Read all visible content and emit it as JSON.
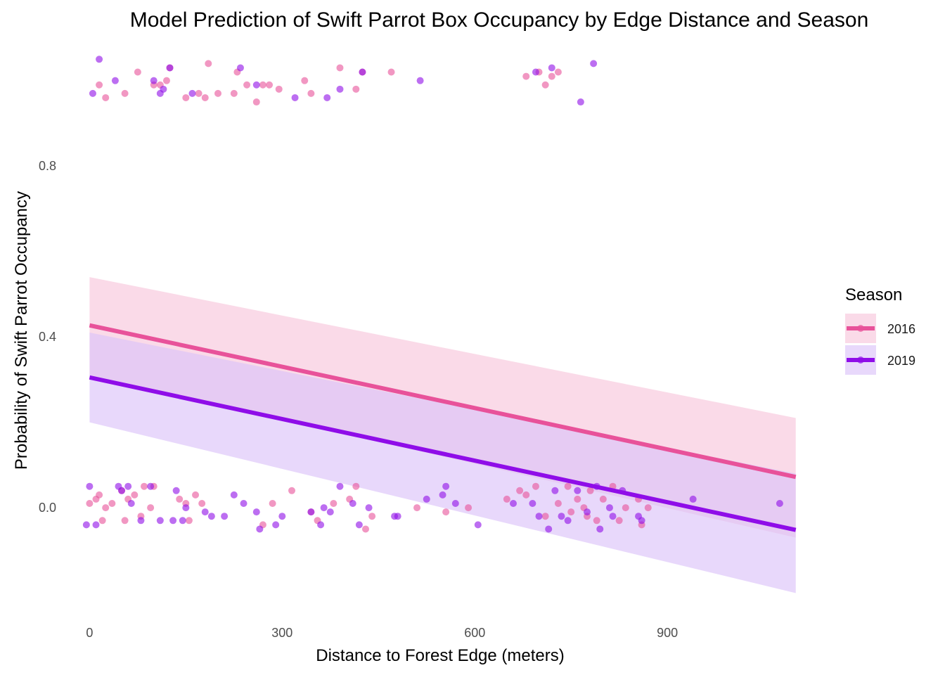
{
  "chart_data": {
    "type": "scatter",
    "title": "Model Prediction of Swift Parrot Box Occupancy by Edge Distance and Season",
    "xlabel": "Distance to Forest Edge (meters)",
    "ylabel": "Probability of Swift Parrot Occupancy",
    "xlim": [
      -30,
      1120
    ],
    "ylim": [
      -0.26,
      1.09
    ],
    "xticks": [
      0,
      300,
      600,
      900
    ],
    "yticks": [
      0.0,
      0.4,
      0.8
    ],
    "xtick_labels": [
      "0",
      "300",
      "600",
      "900"
    ],
    "ytick_labels": [
      "0.0",
      "0.4",
      "0.8"
    ],
    "grid": false,
    "legend": {
      "title": "Season",
      "position": "right"
    },
    "series": [
      {
        "name": "2016",
        "color": "#e8529a",
        "band_color": "#f7c6dc",
        "fit_line": {
          "x": [
            0,
            1100
          ],
          "y": [
            0.427,
            0.072
          ]
        },
        "ci_band": {
          "x": [
            0,
            1100
          ],
          "lower": [
            0.31,
            -0.07
          ],
          "upper": [
            0.54,
            0.21
          ]
        },
        "points_occupied": [
          [
            15,
            0.99
          ],
          [
            25,
            0.96
          ],
          [
            55,
            0.97
          ],
          [
            75,
            1.02
          ],
          [
            100,
            0.99
          ],
          [
            110,
            0.99
          ],
          [
            120,
            1.0
          ],
          [
            125,
            1.03
          ],
          [
            150,
            0.96
          ],
          [
            170,
            0.97
          ],
          [
            180,
            0.96
          ],
          [
            185,
            1.04
          ],
          [
            200,
            0.97
          ],
          [
            225,
            0.97
          ],
          [
            230,
            1.02
          ],
          [
            245,
            0.99
          ],
          [
            260,
            0.95
          ],
          [
            270,
            0.99
          ],
          [
            280,
            0.99
          ],
          [
            295,
            0.98
          ],
          [
            335,
            1.0
          ],
          [
            345,
            0.97
          ],
          [
            390,
            1.03
          ],
          [
            415,
            0.98
          ],
          [
            425,
            1.02
          ],
          [
            470,
            1.02
          ],
          [
            680,
            1.01
          ],
          [
            700,
            1.02
          ],
          [
            710,
            0.99
          ],
          [
            720,
            1.01
          ],
          [
            730,
            1.02
          ]
        ],
        "points_unoccupied": [
          [
            0,
            0.01
          ],
          [
            10,
            0.02
          ],
          [
            15,
            0.03
          ],
          [
            20,
            -0.03
          ],
          [
            25,
            0.0
          ],
          [
            35,
            0.01
          ],
          [
            50,
            0.04
          ],
          [
            55,
            -0.03
          ],
          [
            60,
            0.02
          ],
          [
            70,
            0.03
          ],
          [
            80,
            -0.02
          ],
          [
            85,
            0.05
          ],
          [
            95,
            0.0
          ],
          [
            100,
            0.05
          ],
          [
            140,
            0.02
          ],
          [
            150,
            0.01
          ],
          [
            155,
            -0.03
          ],
          [
            165,
            0.03
          ],
          [
            175,
            0.01
          ],
          [
            270,
            -0.04
          ],
          [
            285,
            0.01
          ],
          [
            315,
            0.04
          ],
          [
            345,
            -0.01
          ],
          [
            355,
            -0.03
          ],
          [
            380,
            0.01
          ],
          [
            405,
            0.02
          ],
          [
            415,
            0.05
          ],
          [
            430,
            -0.05
          ],
          [
            440,
            -0.02
          ],
          [
            510,
            0.0
          ],
          [
            555,
            -0.01
          ],
          [
            590,
            0.0
          ],
          [
            650,
            0.02
          ],
          [
            670,
            0.04
          ],
          [
            680,
            0.03
          ],
          [
            695,
            0.05
          ],
          [
            710,
            -0.02
          ],
          [
            730,
            0.01
          ],
          [
            745,
            0.05
          ],
          [
            750,
            -0.01
          ],
          [
            760,
            0.02
          ],
          [
            770,
            0.0
          ],
          [
            775,
            -0.02
          ],
          [
            780,
            0.04
          ],
          [
            790,
            -0.03
          ],
          [
            800,
            0.02
          ],
          [
            815,
            0.05
          ],
          [
            825,
            -0.03
          ],
          [
            835,
            0.0
          ],
          [
            855,
            0.02
          ],
          [
            860,
            -0.04
          ],
          [
            870,
            0.0
          ]
        ]
      },
      {
        "name": "2019",
        "color": "#8f0de8",
        "band_color": "#dcc3f9",
        "fit_line": {
          "x": [
            0,
            1100
          ],
          "y": [
            0.305,
            -0.052
          ]
        },
        "ci_band": {
          "x": [
            0,
            1100
          ],
          "lower": [
            0.2,
            -0.2
          ],
          "upper": [
            0.41,
            0.08
          ]
        },
        "points_occupied": [
          [
            5,
            0.97
          ],
          [
            15,
            1.05
          ],
          [
            40,
            1.0
          ],
          [
            100,
            1.0
          ],
          [
            110,
            0.97
          ],
          [
            115,
            0.98
          ],
          [
            125,
            1.03
          ],
          [
            160,
            0.97
          ],
          [
            260,
            0.99
          ],
          [
            235,
            1.03
          ],
          [
            320,
            0.96
          ],
          [
            370,
            0.96
          ],
          [
            390,
            0.98
          ],
          [
            425,
            1.02
          ],
          [
            515,
            1.0
          ],
          [
            695,
            1.02
          ],
          [
            720,
            1.03
          ],
          [
            765,
            0.95
          ],
          [
            785,
            1.04
          ]
        ],
        "points_unoccupied": [
          [
            -5,
            -0.04
          ],
          [
            0,
            0.05
          ],
          [
            10,
            -0.04
          ],
          [
            45,
            0.05
          ],
          [
            50,
            0.04
          ],
          [
            60,
            0.05
          ],
          [
            65,
            0.01
          ],
          [
            80,
            -0.03
          ],
          [
            95,
            0.05
          ],
          [
            110,
            -0.03
          ],
          [
            130,
            -0.03
          ],
          [
            135,
            0.04
          ],
          [
            145,
            -0.03
          ],
          [
            150,
            0.0
          ],
          [
            180,
            -0.01
          ],
          [
            190,
            -0.02
          ],
          [
            210,
            -0.02
          ],
          [
            225,
            0.03
          ],
          [
            240,
            0.01
          ],
          [
            260,
            -0.01
          ],
          [
            265,
            -0.05
          ],
          [
            290,
            -0.04
          ],
          [
            300,
            -0.02
          ],
          [
            345,
            -0.01
          ],
          [
            360,
            -0.04
          ],
          [
            365,
            0.0
          ],
          [
            375,
            -0.01
          ],
          [
            390,
            0.05
          ],
          [
            410,
            0.01
          ],
          [
            420,
            -0.04
          ],
          [
            435,
            0.0
          ],
          [
            475,
            -0.02
          ],
          [
            480,
            -0.02
          ],
          [
            525,
            0.02
          ],
          [
            550,
            0.03
          ],
          [
            555,
            0.05
          ],
          [
            570,
            0.01
          ],
          [
            605,
            -0.04
          ],
          [
            660,
            0.01
          ],
          [
            690,
            0.01
          ],
          [
            700,
            -0.02
          ],
          [
            715,
            -0.05
          ],
          [
            725,
            0.04
          ],
          [
            735,
            -0.02
          ],
          [
            745,
            -0.03
          ],
          [
            760,
            0.04
          ],
          [
            775,
            -0.01
          ],
          [
            790,
            0.05
          ],
          [
            795,
            -0.05
          ],
          [
            810,
            0.0
          ],
          [
            815,
            -0.02
          ],
          [
            830,
            0.04
          ],
          [
            855,
            -0.02
          ],
          [
            860,
            -0.03
          ],
          [
            940,
            0.02
          ],
          [
            1075,
            0.01
          ]
        ]
      }
    ]
  }
}
